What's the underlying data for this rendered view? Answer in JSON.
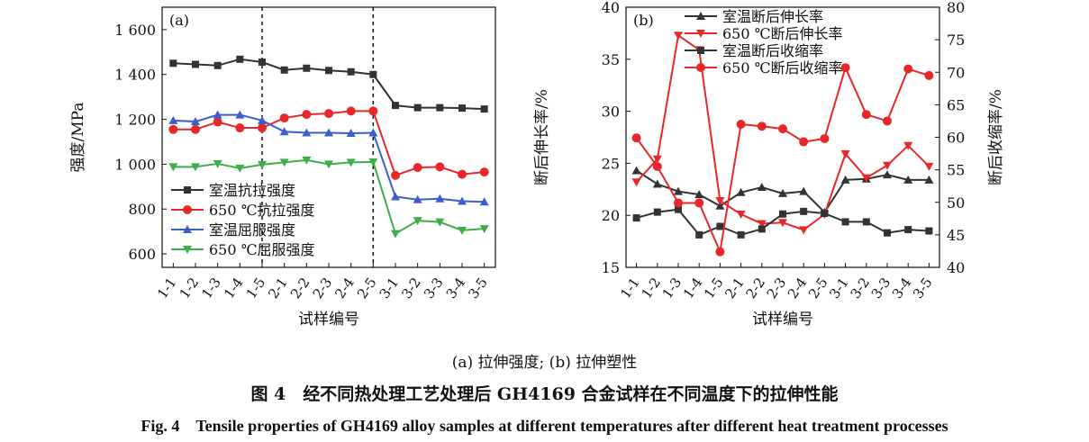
{
  "chart_data": [
    {
      "type": "line",
      "panel_label": "(a)",
      "xlabel": "试样编号",
      "ylabel": "强度/MPa",
      "categories": [
        "1-1",
        "1-2",
        "1-3",
        "1-4",
        "1-5",
        "2-1",
        "2-2",
        "2-3",
        "2-4",
        "2-5",
        "3-1",
        "3-2",
        "3-3",
        "3-4",
        "3-5"
      ],
      "ylim": [
        540,
        1700
      ],
      "yticks": [
        600,
        800,
        1000,
        1200,
        1400,
        1600
      ],
      "ytick_labels": [
        "600",
        "800",
        "1 000",
        "1 200",
        "1 400",
        "1 600"
      ],
      "dashed_after": [
        "1-5",
        "2-5"
      ],
      "legend_position": "bottom-left",
      "series": [
        {
          "name": "室温抗拉强度",
          "color": "#333333",
          "marker": "square",
          "values": [
            1450,
            1445,
            1440,
            1468,
            1455,
            1420,
            1428,
            1418,
            1412,
            1400,
            1262,
            1252,
            1252,
            1250,
            1246
          ]
        },
        {
          "name": "650 ℃抗拉强度",
          "color": "#e8272a",
          "marker": "circle",
          "values": [
            1155,
            1155,
            1188,
            1162,
            1162,
            1206,
            1222,
            1226,
            1237,
            1237,
            950,
            985,
            988,
            955,
            965
          ]
        },
        {
          "name": "室温屈服强度",
          "color": "#3a5fcd",
          "marker": "triangle-up",
          "values": [
            1195,
            1190,
            1220,
            1220,
            1195,
            1145,
            1140,
            1140,
            1138,
            1140,
            855,
            842,
            846,
            835,
            832
          ]
        },
        {
          "name": "650 ℃屈服强度",
          "color": "#3fae4a",
          "marker": "triangle-down",
          "values": [
            988,
            988,
            1002,
            982,
            998,
            1008,
            1018,
            1000,
            1008,
            1010,
            690,
            748,
            742,
            705,
            712
          ]
        }
      ]
    },
    {
      "type": "line",
      "panel_label": "(b)",
      "xlabel": "试样编号",
      "ylabel": "断后伸长率/%",
      "ylabel_right": "断后收缩率/%",
      "categories": [
        "1-1",
        "1-2",
        "1-3",
        "1-4",
        "1-5",
        "2-1",
        "2-2",
        "2-3",
        "2-4",
        "2-5",
        "3-1",
        "3-2",
        "3-3",
        "3-4",
        "3-5"
      ],
      "ylim": [
        15,
        40
      ],
      "yticks": [
        15,
        20,
        25,
        30,
        35,
        40
      ],
      "ylim_right": [
        40,
        80
      ],
      "yticks_right": [
        40,
        45,
        50,
        55,
        60,
        65,
        70,
        75,
        80
      ],
      "legend_position": "top",
      "series": [
        {
          "name": "室温断后伸长率",
          "axis": "left",
          "color": "#333333",
          "marker": "triangle-up",
          "values": [
            24.3,
            23.0,
            22.3,
            22.0,
            20.9,
            22.2,
            22.7,
            22.1,
            22.3,
            20.3,
            23.4,
            23.5,
            23.9,
            23.4,
            23.4
          ]
        },
        {
          "name": "650 ℃断后伸长率",
          "axis": "left",
          "color": "#e8272a",
          "marker": "triangle-down",
          "values": [
            23.2,
            25.4,
            37.3,
            35.9,
            21.4,
            20.1,
            19.2,
            19.3,
            18.6,
            20.1,
            25.9,
            23.6,
            24.8,
            26.7,
            24.7
          ]
        },
        {
          "name": "室温断后收缩率",
          "axis": "right",
          "color": "#333333",
          "marker": "square",
          "values": [
            47.6,
            48.5,
            48.9,
            45.0,
            46.3,
            45.0,
            45.9,
            48.2,
            48.6,
            48.3,
            47.0,
            47.0,
            45.3,
            45.8,
            45.6
          ]
        },
        {
          "name": "650 ℃断后收缩率",
          "axis": "right",
          "color": "#e8272a",
          "marker": "circle",
          "values": [
            59.9,
            55.5,
            49.9,
            49.9,
            42.4,
            62.0,
            61.7,
            61.3,
            59.3,
            59.8,
            70.7,
            63.5,
            62.5,
            70.5,
            69.5
          ]
        }
      ]
    }
  ],
  "captions": {
    "subcaption": "(a) 拉伸强度; (b) 拉伸塑性",
    "caption_cn": "图 4　经不同热处理工艺处理后 GH4169 合金试样在不同温度下的拉伸性能",
    "caption_en": "Fig. 4　Tensile properties of GH4169 alloy samples at different temperatures after different heat treatment processes"
  }
}
